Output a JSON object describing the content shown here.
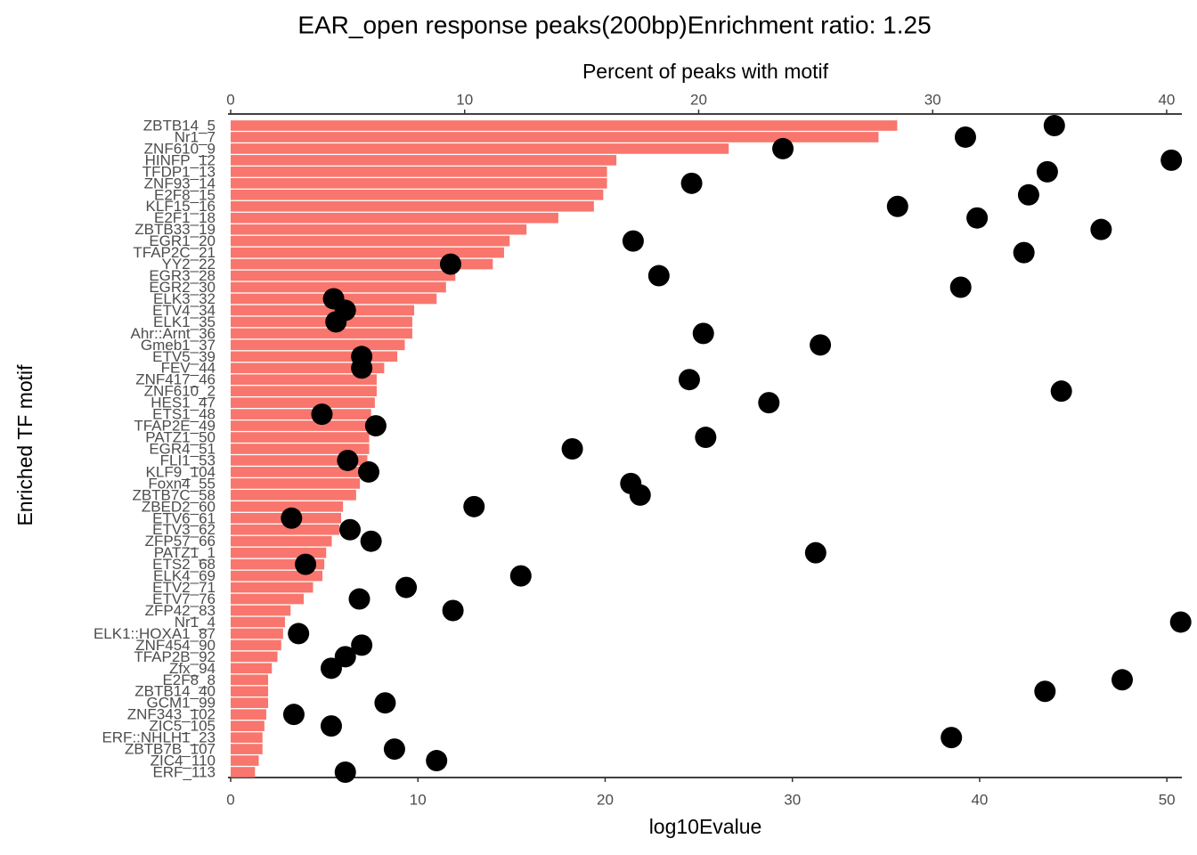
{
  "chart_data": {
    "type": "bar",
    "title": "EAR_open response peaks(200bp)Enrichment ratio: 1.25",
    "xlabel": "log10Evalue",
    "x2label": "Percent of peaks with motif",
    "ylabel": "Enriched TF motif",
    "categories": [
      "ZBTB14_5",
      "Nr1_7",
      "ZNF610_9",
      "HINFP_12",
      "TFDP1_13",
      "ZNF93_14",
      "E2F8_15",
      "KLF15_16",
      "E2F1_18",
      "ZBTB33_19",
      "EGR1_20",
      "TFAP2C_21",
      "YY2_22",
      "EGR3_28",
      "EGR2_30",
      "ELK3_32",
      "ETV4_34",
      "ELK1_35",
      "Ahr::Arnt_36",
      "Gmeb1_37",
      "ETV5_39",
      "FEV_44",
      "ZNF417_46",
      "ZNF610_2",
      "HES1_47",
      "ETS1_48",
      "TFAP2E_49",
      "PATZ1_50",
      "EGR4_51",
      "FLI1_53",
      "KLF9_104",
      "Foxn4_55",
      "ZBTB7C_58",
      "ZBED2_60",
      "ETV6_61",
      "ETV3_62",
      "ZFP57_66",
      "PATZ1_1",
      "ETS2_68",
      "ELK4_69",
      "ETV2_71",
      "ETV7_76",
      "ZFP42_83",
      "Nr1_4",
      "ELK1::HOXA1_87",
      "ZNF454_90",
      "TFAP2B_92",
      "Zfx_94",
      "E2F8_8",
      "ZBTB14_40",
      "GCM1_99",
      "ZNF343_102",
      "ZIC5_105",
      "ERF::NHLH1_23",
      "ZBTB7B_107",
      "ZIC4_110",
      "ERF_113"
    ],
    "series": [
      {
        "type": "bar",
        "axis": "x",
        "color": "#f8766d",
        "values": [
          35.6,
          34.6,
          26.6,
          20.6,
          20.1,
          20.1,
          19.9,
          19.4,
          17.5,
          15.8,
          14.9,
          14.6,
          14.0,
          12.0,
          11.5,
          11.0,
          9.8,
          9.7,
          9.7,
          9.3,
          8.9,
          8.2,
          7.8,
          7.8,
          7.7,
          7.5,
          7.4,
          7.4,
          7.4,
          7.3,
          7.0,
          6.9,
          6.7,
          6.0,
          5.9,
          5.8,
          5.4,
          5.1,
          5.0,
          4.9,
          4.4,
          3.9,
          3.2,
          2.9,
          2.8,
          2.7,
          2.5,
          2.2,
          2.0,
          2.0,
          2.0,
          1.9,
          1.8,
          1.7,
          1.7,
          1.5,
          1.3
        ]
      },
      {
        "type": "scatter",
        "axis": "x2",
        "color": "#000000",
        "values": [
          35.2,
          31.4,
          23.6,
          40.2,
          34.9,
          19.7,
          34.1,
          28.5,
          31.9,
          37.2,
          17.2,
          33.9,
          9.4,
          18.3,
          31.2,
          4.4,
          4.9,
          4.5,
          20.2,
          25.2,
          5.6,
          5.6,
          19.6,
          35.5,
          23.0,
          3.9,
          6.2,
          20.3,
          14.6,
          5.0,
          5.9,
          17.1,
          17.5,
          10.4,
          2.6,
          5.1,
          6.0,
          25.0,
          3.2,
          12.4,
          7.5,
          5.5,
          9.5,
          40.6,
          2.9,
          5.6,
          4.9,
          4.3,
          38.1,
          34.8,
          6.6,
          2.7,
          4.3,
          30.8,
          7.0,
          8.8,
          4.9
        ]
      }
    ],
    "xlim": [
      0,
      50.8
    ],
    "xticks": [
      0,
      10,
      20,
      30,
      40,
      50
    ],
    "x2lim": [
      0,
      40.65
    ],
    "x2ticks": [
      0,
      10,
      20,
      30,
      40
    ]
  }
}
